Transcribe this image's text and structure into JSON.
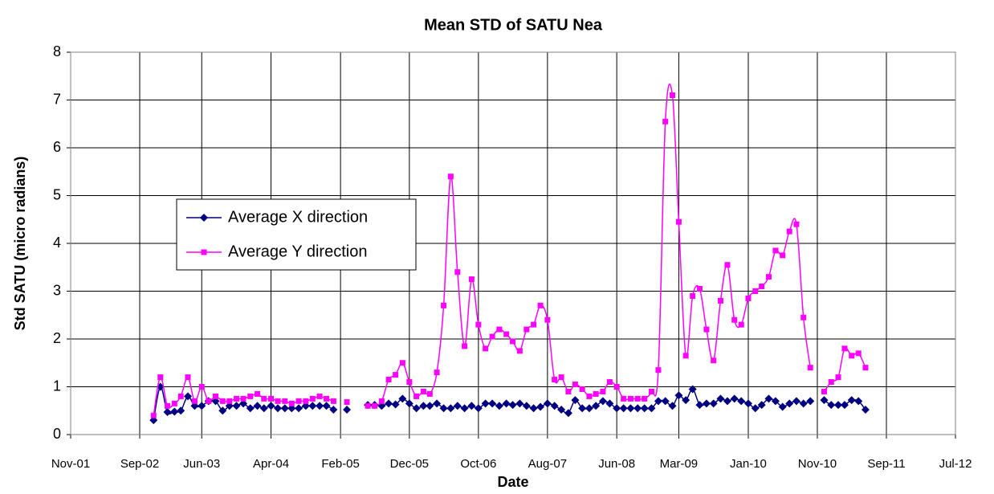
{
  "chart_data": {
    "type": "line",
    "title": "Mean STD of SATU Nea",
    "x_label": "Date",
    "y_label": "Std SATU (micro radians)",
    "x": [
      "Nov-02",
      "Dec-02",
      "Jan-03",
      "Feb-03",
      "Mar-03",
      "Apr-03",
      "May-03",
      "Jun-03",
      "Jul-03",
      "Aug-03",
      "Sep-03",
      "Oct-03",
      "Nov-03",
      "Dec-03",
      "Jan-04",
      "Feb-04",
      "Mar-04",
      "Apr-04",
      "May-04",
      "Jun-04",
      "Jul-04",
      "Aug-04",
      "Sep-04",
      "Oct-04",
      "Nov-04",
      "Dec-04",
      "Jan-05",
      "Feb-05",
      "Mar-05",
      "Apr-05",
      "May-05",
      "Jun-05",
      "Jul-05",
      "Aug-05",
      "Sep-05",
      "Oct-05",
      "Nov-05",
      "Dec-05",
      "Jan-06",
      "Feb-06",
      "Mar-06",
      "Apr-06",
      "May-06",
      "Jun-06",
      "Jul-06",
      "Aug-06",
      "Sep-06",
      "Oct-06",
      "Nov-06",
      "Dec-06",
      "Jan-07",
      "Feb-07",
      "Mar-07",
      "Apr-07",
      "May-07",
      "Jun-07",
      "Jul-07",
      "Aug-07",
      "Sep-07",
      "Oct-07",
      "Nov-07",
      "Dec-07",
      "Jan-08",
      "Feb-08",
      "Mar-08",
      "Apr-08",
      "May-08",
      "Jun-08",
      "Jul-08",
      "Aug-08",
      "Sep-08",
      "Oct-08",
      "Nov-08",
      "Dec-08",
      "Jan-09",
      "Feb-09",
      "Mar-09",
      "Apr-09",
      "May-09",
      "Jun-09",
      "Jul-09",
      "Aug-09",
      "Sep-09",
      "Oct-09",
      "Nov-09",
      "Dec-09",
      "Jan-10",
      "Feb-10",
      "Mar-10",
      "Apr-10",
      "May-10",
      "Jun-10",
      "Jul-10",
      "Aug-10",
      "Sep-10",
      "Oct-10",
      "Nov-10",
      "Dec-10",
      "Jan-11",
      "Feb-11",
      "Mar-11",
      "Apr-11",
      "May-11",
      "Jun-11"
    ],
    "series": [
      {
        "name": "Average X direction",
        "color": "#000080",
        "marker": "diamond",
        "values": [
          0.3,
          1.0,
          0.47,
          0.48,
          0.5,
          0.8,
          0.6,
          0.6,
          0.7,
          0.7,
          0.5,
          0.6,
          0.6,
          0.65,
          0.55,
          0.6,
          0.55,
          0.6,
          0.55,
          0.55,
          0.55,
          0.55,
          0.6,
          0.6,
          0.6,
          0.6,
          0.52,
          null,
          0.52,
          null,
          null,
          0.62,
          0.62,
          0.6,
          0.65,
          0.63,
          0.75,
          0.65,
          0.55,
          0.6,
          0.6,
          0.65,
          0.55,
          0.55,
          0.6,
          0.55,
          0.6,
          0.55,
          0.65,
          0.65,
          0.6,
          0.65,
          0.62,
          0.65,
          0.6,
          0.55,
          0.58,
          0.65,
          0.6,
          0.52,
          0.45,
          0.72,
          0.55,
          0.55,
          0.6,
          0.7,
          0.65,
          0.55,
          0.55,
          0.55,
          0.55,
          0.55,
          0.55,
          0.7,
          0.7,
          0.6,
          0.82,
          0.72,
          0.95,
          0.62,
          0.65,
          0.65,
          0.75,
          0.7,
          0.75,
          0.7,
          0.65,
          0.55,
          0.62,
          0.75,
          0.7,
          0.58,
          0.65,
          0.7,
          0.65,
          0.7,
          null,
          0.72,
          0.62,
          0.62,
          0.62,
          0.72,
          0.7,
          0.52
        ]
      },
      {
        "name": "Average Y direction",
        "color": "#ff00ff",
        "marker": "square",
        "values": [
          0.4,
          1.2,
          0.6,
          0.65,
          0.8,
          1.2,
          0.7,
          1.0,
          0.7,
          0.8,
          0.7,
          0.7,
          0.75,
          0.75,
          0.8,
          0.85,
          0.75,
          0.75,
          0.7,
          0.7,
          0.65,
          0.7,
          0.7,
          0.75,
          0.8,
          0.75,
          0.7,
          null,
          0.68,
          null,
          null,
          0.6,
          0.6,
          0.7,
          1.15,
          1.25,
          1.5,
          1.1,
          0.8,
          0.9,
          0.85,
          1.3,
          2.7,
          5.4,
          3.4,
          1.85,
          3.25,
          2.3,
          1.8,
          2.05,
          2.2,
          2.1,
          1.95,
          1.75,
          2.2,
          2.3,
          2.7,
          2.4,
          1.15,
          1.2,
          0.9,
          1.05,
          0.95,
          0.8,
          0.85,
          0.9,
          1.1,
          1.0,
          0.75,
          0.75,
          0.75,
          0.75,
          0.9,
          1.35,
          6.55,
          7.1,
          4.45,
          1.65,
          2.9,
          3.05,
          2.2,
          1.55,
          2.8,
          3.55,
          2.4,
          2.3,
          2.85,
          3.0,
          3.1,
          3.3,
          3.85,
          3.75,
          4.25,
          4.4,
          2.45,
          1.4,
          null,
          0.9,
          1.1,
          1.2,
          1.8,
          1.65,
          1.7,
          1.4
        ]
      }
    ],
    "xlim": [
      "Nov-01",
      "Jul-12"
    ],
    "xticks": [
      "Nov-01",
      "Sep-02",
      "Jun-03",
      "Apr-04",
      "Feb-05",
      "Dec-05",
      "Oct-06",
      "Aug-07",
      "Jun-08",
      "Mar-09",
      "Jan-10",
      "Nov-10",
      "Sep-11",
      "Jul-12"
    ],
    "ylim": [
      0,
      8
    ],
    "yticks": [
      0,
      1,
      2,
      3,
      4,
      5,
      6,
      7,
      8
    ],
    "grid": true,
    "legend": "center-left"
  }
}
